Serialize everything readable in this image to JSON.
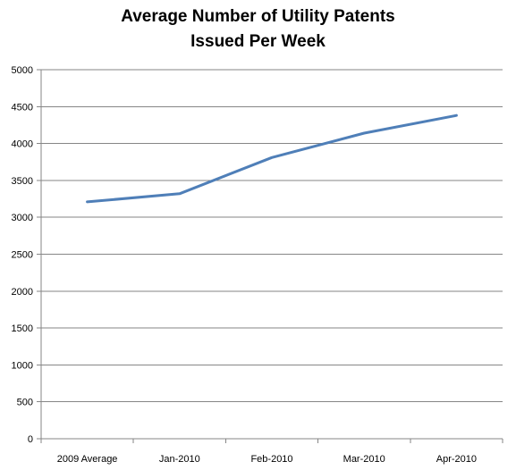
{
  "chart_data": {
    "type": "line",
    "title_lines": [
      "Average Number of Utility Patents",
      "Issued Per Week"
    ],
    "categories": [
      "2009 Average",
      "Jan-2010",
      "Feb-2010",
      "Mar-2010",
      "Apr-2010"
    ],
    "series": [
      {
        "values": [
          3210,
          3320,
          3810,
          4140,
          4380
        ],
        "color": "#4f7fb8"
      }
    ],
    "ylim": [
      0,
      5000
    ],
    "yticks": [
      0,
      500,
      1000,
      1500,
      2000,
      2500,
      3000,
      3500,
      4000,
      4500,
      5000
    ],
    "grid": true,
    "legend": "none"
  }
}
